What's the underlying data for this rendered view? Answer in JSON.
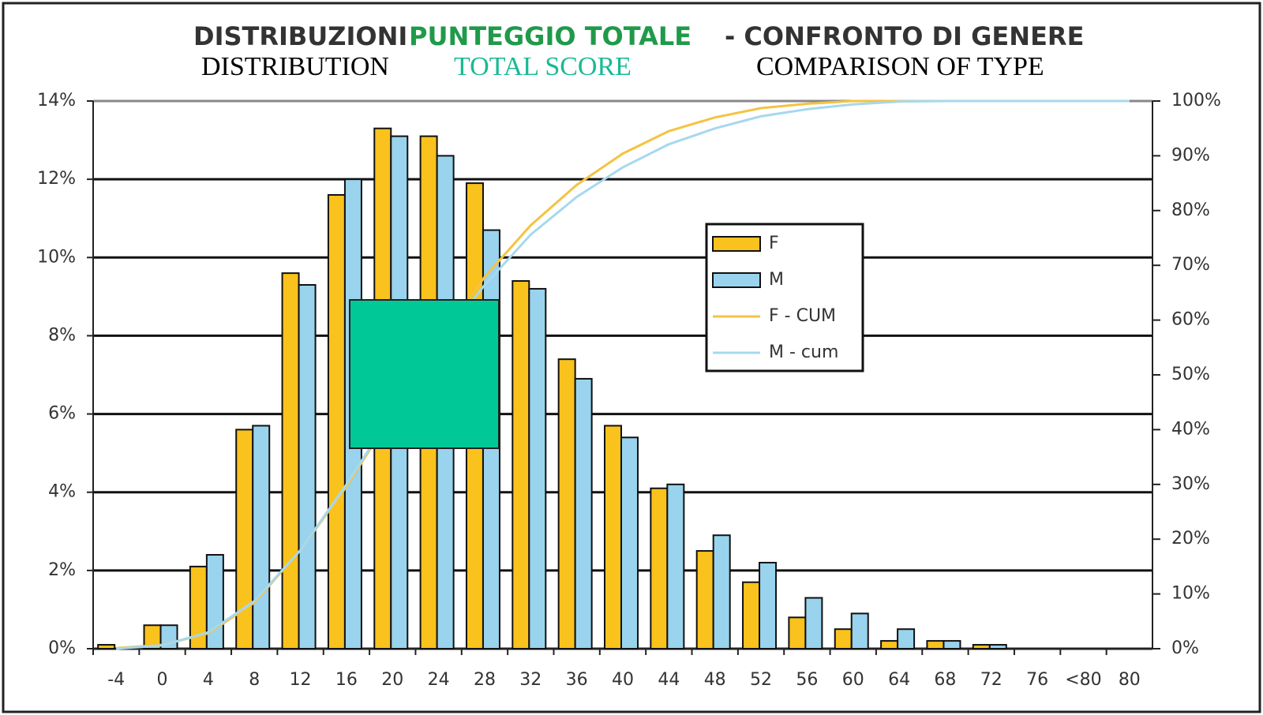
{
  "chart_data": {
    "type": "bar",
    "title_parts": [
      {
        "text": "DISTRIBUZIONI",
        "color": "#333333"
      },
      {
        "text": "PUNTEGGIO TOTALE",
        "color": "#1f9a4a"
      },
      {
        "text": "- CONFRONTO DI GENERE",
        "color": "#333333"
      }
    ],
    "subtitle_parts": [
      {
        "text": "DISTRIBUTION",
        "color": "#000000"
      },
      {
        "text": "TOTAL SCORE",
        "color": "#19b994"
      },
      {
        "text": "COMPARISON OF TYPE",
        "color": "#000000"
      }
    ],
    "categories": [
      "-4",
      "0",
      "4",
      "8",
      "12",
      "16",
      "20",
      "24",
      "28",
      "32",
      "36",
      "40",
      "44",
      "48",
      "52",
      "56",
      "60",
      "64",
      "68",
      "72",
      "76",
      "<80",
      "80"
    ],
    "series": [
      {
        "name": "F",
        "type": "bar",
        "color": "#f9c21c",
        "values": [
          0.1,
          0.6,
          2.1,
          5.6,
          9.6,
          11.6,
          13.3,
          13.1,
          11.9,
          9.4,
          7.4,
          5.7,
          4.1,
          2.5,
          1.7,
          0.8,
          0.5,
          0.2,
          0.2,
          0.1,
          0,
          0,
          0
        ]
      },
      {
        "name": "M",
        "type": "bar",
        "color": "#99d3ee",
        "values": [
          0,
          0.6,
          2.4,
          5.7,
          9.3,
          12.0,
          13.1,
          12.6,
          10.7,
          9.2,
          6.9,
          5.4,
          4.2,
          2.9,
          2.2,
          1.3,
          0.9,
          0.5,
          0.2,
          0.1,
          0,
          0,
          0
        ]
      },
      {
        "name": "F - CUM",
        "type": "line",
        "axis": "y2",
        "color": "#f5c342",
        "values": [
          0.1,
          0.7,
          2.8,
          8.4,
          18.0,
          29.6,
          42.9,
          56.0,
          67.9,
          77.3,
          84.7,
          90.4,
          94.5,
          97.0,
          98.7,
          99.5,
          100,
          100,
          100,
          100,
          100,
          100,
          100
        ]
      },
      {
        "name": "M - cum",
        "type": "line",
        "axis": "y2",
        "color": "#a6d8ef",
        "values": [
          0,
          0.6,
          3.0,
          8.7,
          18.0,
          30.0,
          43.1,
          55.7,
          66.4,
          75.6,
          82.5,
          87.9,
          92.1,
          95.0,
          97.2,
          98.5,
          99.4,
          99.9,
          100,
          100,
          100,
          100,
          100
        ]
      }
    ],
    "ylim": [
      0,
      14
    ],
    "yticks": [
      {
        "value": 0,
        "label": "0%"
      },
      {
        "value": 2,
        "label": "2%"
      },
      {
        "value": 4,
        "label": "4%"
      },
      {
        "value": 6,
        "label": "6%"
      },
      {
        "value": 8,
        "label": "8%"
      },
      {
        "value": 10,
        "label": "10%"
      },
      {
        "value": 12,
        "label": "12%"
      },
      {
        "value": 14,
        "label": "14%"
      }
    ],
    "y2lim": [
      0,
      100
    ],
    "y2ticks": [
      {
        "value": 0,
        "label": "0%"
      },
      {
        "value": 10,
        "label": "10%"
      },
      {
        "value": 20,
        "label": "20%"
      },
      {
        "value": 30,
        "label": "30%"
      },
      {
        "value": 40,
        "label": "40%"
      },
      {
        "value": 50,
        "label": "50%"
      },
      {
        "value": 60,
        "label": "60%"
      },
      {
        "value": 70,
        "label": "70%"
      },
      {
        "value": 80,
        "label": "80%"
      },
      {
        "value": 90,
        "label": "90%"
      },
      {
        "value": 100,
        "label": "100%"
      }
    ],
    "grid": true
  }
}
